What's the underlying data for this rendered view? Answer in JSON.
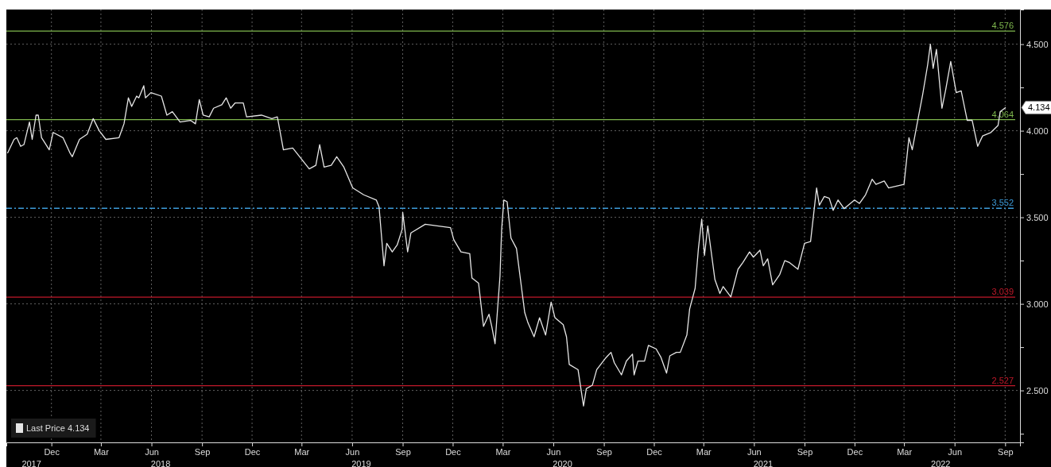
{
  "chart_data": {
    "type": "line",
    "legend": "bottom left",
    "grid": true,
    "marker": "none",
    "line_style": "solid",
    "xlim": [
      "2017-09-24",
      "2022-10-12"
    ],
    "ylim": [
      2.2,
      4.7
    ],
    "yticks": [
      {
        "value": 2.25,
        "label": null
      },
      {
        "value": 2.5,
        "label": "2.500"
      },
      {
        "value": 2.75,
        "label": null
      },
      {
        "value": 3,
        "label": "3.000"
      },
      {
        "value": 3.25,
        "label": null
      },
      {
        "value": 3.5,
        "label": "3.500"
      },
      {
        "value": 3.75,
        "label": null
      },
      {
        "value": 4,
        "label": "4.000"
      },
      {
        "value": 4.25,
        "label": null
      },
      {
        "value": 4.5,
        "label": "4.500"
      }
    ],
    "xticks": [
      {
        "value": "2017-12-15",
        "label": "Dec"
      },
      {
        "value": "2018-03-15",
        "label": "Mar"
      },
      {
        "value": "2018-06-15",
        "label": "Jun"
      },
      {
        "value": "2018-09-15",
        "label": "Sep"
      },
      {
        "value": "2018-12-15",
        "label": "Dec"
      },
      {
        "value": "2019-03-15",
        "label": "Mar"
      },
      {
        "value": "2019-06-15",
        "label": "Jun"
      },
      {
        "value": "2019-09-15",
        "label": "Sep"
      },
      {
        "value": "2019-12-15",
        "label": "Dec"
      },
      {
        "value": "2020-03-15",
        "label": "Mar"
      },
      {
        "value": "2020-06-15",
        "label": "Jun"
      },
      {
        "value": "2020-09-15",
        "label": "Sep"
      },
      {
        "value": "2020-12-15",
        "label": "Dec"
      },
      {
        "value": "2021-03-15",
        "label": "Mar"
      },
      {
        "value": "2021-06-15",
        "label": "Jun"
      },
      {
        "value": "2021-09-15",
        "label": "Sep"
      },
      {
        "value": "2021-12-15",
        "label": "Dec"
      },
      {
        "value": "2022-03-15",
        "label": "Mar"
      },
      {
        "value": "2022-06-15",
        "label": "Jun"
      },
      {
        "value": "2022-09-15",
        "label": "Sep"
      }
    ],
    "x2lim": [
      "2017-09-24",
      "2022-10-12"
    ],
    "x2ticks": [
      {
        "value": "2017-11-08",
        "label": "2017"
      },
      {
        "value": "2018-07-01",
        "label": "2018"
      },
      {
        "value": "2019-07-01",
        "label": "2019"
      },
      {
        "value": "2020-07-01",
        "label": "2020"
      },
      {
        "value": "2021-07-01",
        "label": "2021"
      },
      {
        "value": "2022-05-20",
        "label": "2022"
      }
    ],
    "ref_lines": [
      {
        "axis": "y",
        "value": 4.576,
        "label": "4.576",
        "color": "#7fb84e",
        "line_style": "solid"
      },
      {
        "axis": "y",
        "value": 4.064,
        "label": "4.064",
        "color": "#7fb84e",
        "line_style": "solid"
      },
      {
        "axis": "y",
        "value": 3.552,
        "label": "3.552",
        "color": "#3d9bd9",
        "line_style": "dashed"
      },
      {
        "axis": "y",
        "value": 3.039,
        "label": "3.039",
        "color": "#c0192a",
        "line_style": "solid"
      },
      {
        "axis": "y",
        "value": 2.527,
        "label": "2.527",
        "color": "#c0192a",
        "line_style": "solid"
      }
    ],
    "annotations": [
      {
        "text": "4.134",
        "x": "2022-09-16",
        "y": 4.134
      }
    ],
    "series": [
      {
        "name": "Last Price 4.134",
        "color": "#e6e6e6",
        "x": [
          "2017-09-26",
          "2017-10-08",
          "2017-10-13",
          "2017-10-20",
          "2017-10-26",
          "2017-11-05",
          "2017-11-10",
          "2017-11-17",
          "2017-11-21",
          "2017-11-27",
          "2017-12-01",
          "2017-12-11",
          "2017-12-18",
          "2018-01-05",
          "2018-01-18",
          "2018-01-22",
          "2018-02-04",
          "2018-02-18",
          "2018-03-01",
          "2018-03-12",
          "2018-03-24",
          "2018-04-17",
          "2018-04-26",
          "2018-05-04",
          "2018-05-10",
          "2018-05-19",
          "2018-05-23",
          "2018-06-01",
          "2018-06-04",
          "2018-06-14",
          "2018-07-03",
          "2018-07-13",
          "2018-07-23",
          "2018-08-06",
          "2018-08-25",
          "2018-09-03",
          "2018-09-10",
          "2018-09-17",
          "2018-09-28",
          "2018-10-06",
          "2018-10-21",
          "2018-10-29",
          "2018-11-06",
          "2018-11-14",
          "2018-11-29",
          "2018-12-05",
          "2019-01-01",
          "2019-01-20",
          "2019-01-30",
          "2019-02-10",
          "2019-02-27",
          "2019-03-19",
          "2019-03-29",
          "2019-04-10",
          "2019-04-17",
          "2019-04-25",
          "2019-05-08",
          "2019-05-18",
          "2019-05-31",
          "2019-06-16",
          "2019-07-06",
          "2019-07-29",
          "2019-08-03",
          "2019-08-12",
          "2019-08-17",
          "2019-08-27",
          "2019-09-05",
          "2019-09-14",
          "2019-09-15",
          "2019-09-24",
          "2019-09-30",
          "2019-10-26",
          "2019-12-11",
          "2019-12-17",
          "2019-12-30",
          "2020-01-15",
          "2020-01-19",
          "2020-01-31",
          "2020-02-09",
          "2020-02-19",
          "2020-02-24",
          "2020-03-01",
          "2020-03-10",
          "2020-03-13",
          "2020-03-17",
          "2020-03-23",
          "2020-03-30",
          "2020-04-09",
          "2020-04-24",
          "2020-04-30",
          "2020-05-11",
          "2020-05-21",
          "2020-06-01",
          "2020-06-11",
          "2020-06-18",
          "2020-07-03",
          "2020-07-09",
          "2020-07-14",
          "2020-07-30",
          "2020-08-09",
          "2020-08-14",
          "2020-08-25",
          "2020-09-02",
          "2020-09-19",
          "2020-09-28",
          "2020-10-04",
          "2020-10-17",
          "2020-10-26",
          "2020-11-06",
          "2020-11-09",
          "2020-11-16",
          "2020-11-28",
          "2020-12-05",
          "2020-12-19",
          "2020-12-28",
          "2021-01-07",
          "2021-01-13",
          "2021-01-25",
          "2021-02-01",
          "2021-02-13",
          "2021-02-18",
          "2021-02-28",
          "2021-03-06",
          "2021-03-12",
          "2021-03-17",
          "2021-03-23",
          "2021-04-05",
          "2021-04-14",
          "2021-04-20",
          "2021-05-04",
          "2021-05-17",
          "2021-05-26",
          "2021-06-07",
          "2021-06-14",
          "2021-06-26",
          "2021-07-02",
          "2021-07-10",
          "2021-07-19",
          "2021-08-01",
          "2021-08-10",
          "2021-08-18",
          "2021-09-03",
          "2021-09-15",
          "2021-09-26",
          "2021-10-07",
          "2021-10-12",
          "2021-10-21",
          "2021-10-30",
          "2021-11-06",
          "2021-11-15",
          "2021-11-26",
          "2021-12-15",
          "2021-12-24",
          "2022-01-04",
          "2022-01-16",
          "2022-01-23",
          "2022-02-07",
          "2022-02-15",
          "2022-03-15",
          "2022-03-24",
          "2022-03-30",
          "2022-04-09",
          "2022-04-18",
          "2022-04-27",
          "2022-05-02",
          "2022-05-07",
          "2022-05-13",
          "2022-05-23",
          "2022-05-30",
          "2022-06-08",
          "2022-06-18",
          "2022-06-27",
          "2022-07-08",
          "2022-07-17",
          "2022-07-27",
          "2022-08-05",
          "2022-08-20",
          "2022-09-02",
          "2022-09-06",
          "2022-09-10",
          "2022-09-16"
        ],
        "values": [
          3.87,
          3.95,
          3.96,
          3.91,
          3.92,
          4.05,
          3.95,
          4.09,
          4.09,
          3.96,
          3.94,
          3.89,
          3.99,
          3.96,
          3.87,
          3.85,
          3.95,
          3.98,
          4.07,
          4.0,
          3.95,
          3.96,
          4.04,
          4.19,
          4.14,
          4.2,
          4.19,
          4.26,
          4.19,
          4.22,
          4.2,
          4.09,
          4.11,
          4.05,
          4.06,
          4.04,
          4.18,
          4.09,
          4.08,
          4.13,
          4.15,
          4.19,
          4.13,
          4.16,
          4.16,
          4.08,
          4.09,
          4.07,
          4.08,
          3.89,
          3.9,
          3.82,
          3.78,
          3.8,
          3.92,
          3.79,
          3.8,
          3.85,
          3.79,
          3.67,
          3.63,
          3.6,
          3.56,
          3.22,
          3.35,
          3.3,
          3.34,
          3.43,
          3.53,
          3.3,
          3.41,
          3.46,
          3.44,
          3.37,
          3.3,
          3.29,
          3.15,
          3.12,
          2.87,
          2.94,
          2.87,
          2.77,
          3.16,
          3.43,
          3.6,
          3.59,
          3.38,
          3.32,
          2.95,
          2.89,
          2.81,
          2.92,
          2.82,
          3.01,
          2.92,
          2.88,
          2.81,
          2.65,
          2.62,
          2.41,
          2.51,
          2.53,
          2.62,
          2.69,
          2.72,
          2.66,
          2.59,
          2.67,
          2.71,
          2.59,
          2.67,
          2.67,
          2.76,
          2.74,
          2.69,
          2.6,
          2.7,
          2.72,
          2.72,
          2.82,
          2.97,
          3.09,
          3.32,
          3.49,
          3.28,
          3.45,
          3.14,
          3.06,
          3.1,
          3.04,
          3.2,
          3.24,
          3.3,
          3.27,
          3.31,
          3.22,
          3.26,
          3.11,
          3.17,
          3.25,
          3.24,
          3.2,
          3.35,
          3.36,
          3.67,
          3.57,
          3.62,
          3.61,
          3.54,
          3.6,
          3.55,
          3.6,
          3.58,
          3.63,
          3.72,
          3.69,
          3.71,
          3.67,
          3.69,
          3.96,
          3.89,
          4.06,
          4.21,
          4.38,
          4.5,
          4.36,
          4.47,
          4.13,
          4.24,
          4.4,
          4.22,
          4.23,
          4.06,
          4.06,
          3.91,
          3.97,
          3.99,
          4.03,
          4.11,
          4.12,
          4.134
        ]
      }
    ]
  }
}
